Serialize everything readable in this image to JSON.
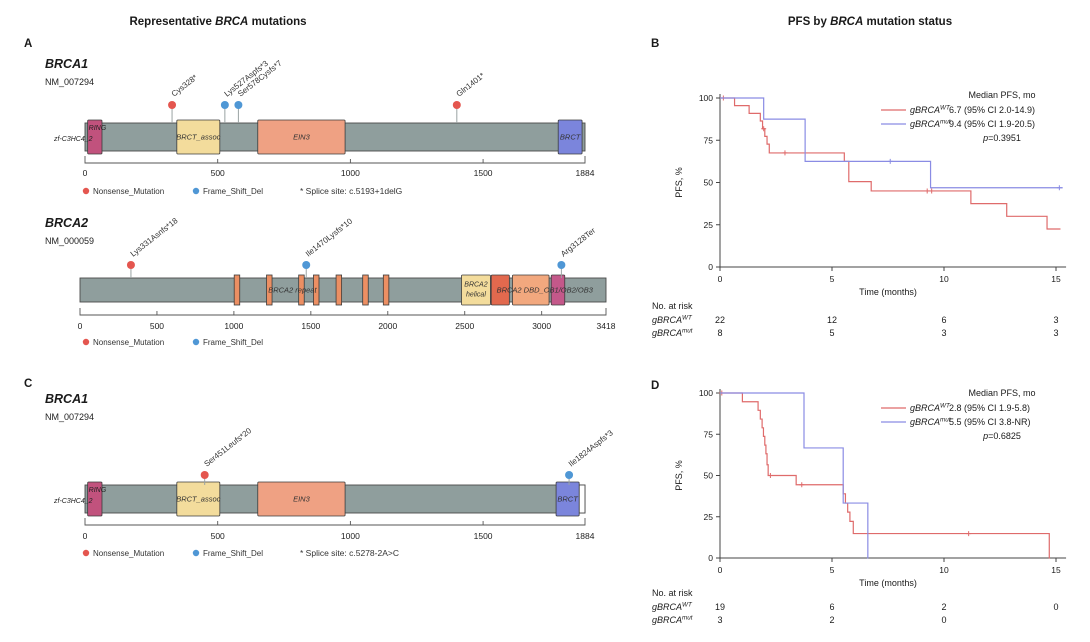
{
  "titles": {
    "left": {
      "prefix": "Representative ",
      "italic": "BRCA",
      "suffix": " mutations"
    },
    "right": {
      "prefix": "PFS by ",
      "italic": "BRCA",
      "suffix": " mutation status"
    }
  },
  "panel_labels": [
    "A",
    "B",
    "C",
    "D"
  ],
  "palette": {
    "nonsense": "#e4564f",
    "frameshift": "#4f97d5",
    "km_wt": "#df6b6b",
    "km_mut": "#8a8ce4",
    "bar": "#8f9e9d",
    "bar_border": "#4a4a4a",
    "domain_border": "#3c3c3c",
    "stem": "#9aa3a3",
    "axis": "#555555",
    "text": "#1a1a1a"
  },
  "chart_data": [
    {
      "type": "lollipop",
      "panel": "A",
      "gene": "BRCA1",
      "transcript": "NM_007294",
      "protein_length": 1884,
      "axis_ticks": [
        0,
        500,
        1000,
        1500,
        1884
      ],
      "domain_side_label": "zf-C3HC4_2",
      "domains": [
        {
          "label": "RING",
          "start": 10,
          "end": 64,
          "color": "#c1527d"
        },
        {
          "label": "BRCT_assoc",
          "start": 346,
          "end": 508,
          "color": "#f3dc9c"
        },
        {
          "label": "EIN3",
          "start": 651,
          "end": 980,
          "color": "#efa183"
        },
        {
          "label": "BRCT",
          "start": 1783,
          "end": 1873,
          "color": "#7b85dc"
        }
      ],
      "mutations": [
        {
          "label": "Cys328*",
          "position": 328,
          "type": "nonsense"
        },
        {
          "label": "Lys527Aspfs*3",
          "position": 527,
          "type": "frameshift"
        },
        {
          "label": "Ser578Cysfs*7",
          "position": 578,
          "type": "frameshift"
        },
        {
          "label": "Gln1401*",
          "position": 1401,
          "type": "nonsense"
        }
      ],
      "legend": [
        {
          "type": "nonsense",
          "label": "Nonsense_Mutation"
        },
        {
          "type": "frameshift",
          "label": "Frame_Shift_Del"
        }
      ],
      "note": "* Splice site: c.5193+1delG"
    },
    {
      "type": "lollipop",
      "panel": "A",
      "gene": "BRCA2",
      "transcript": "NM_000059",
      "protein_length": 3418,
      "axis_ticks": [
        0,
        500,
        1000,
        1500,
        2000,
        2500,
        3000,
        3418
      ],
      "repeats": {
        "label": "BRCA2 repeat",
        "label_at": 1380,
        "positions": [
          1002,
          1212,
          1421,
          1517,
          1664,
          1837,
          1971
        ],
        "width": 36,
        "color": "#ec8f63"
      },
      "domains": [
        {
          "label": "BRCA2",
          "label2": "helical",
          "start": 2479,
          "end": 2667,
          "color": "#f3dc9c"
        },
        {
          "label": "",
          "start": 2672,
          "end": 2790,
          "color": "#e2694e"
        },
        {
          "label": "",
          "start": 2810,
          "end": 3048,
          "color": "#f2a87e"
        },
        {
          "label": "",
          "start": 3062,
          "end": 3150,
          "color": "#c4588a"
        }
      ],
      "span_label": {
        "text": "BRCA2 DBD_OB1/OB2/OB3",
        "center": 3020
      },
      "mutations": [
        {
          "label": "Lys331Asnfs*18",
          "position": 331,
          "type": "nonsense"
        },
        {
          "label": "Ile1470Lysfs*10",
          "position": 1470,
          "type": "frameshift"
        },
        {
          "label": "Arg3128Ter",
          "position": 3128,
          "type": "frameshift"
        }
      ],
      "legend": [
        {
          "type": "nonsense",
          "label": "Nonsense_Mutation"
        },
        {
          "type": "frameshift",
          "label": "Frame_Shift_Del"
        }
      ],
      "note": null
    },
    {
      "type": "km",
      "panel": "B",
      "ylabel": "PFS, %",
      "xlabel": "Time (months)",
      "yticks": [
        0,
        25,
        50,
        75,
        100
      ],
      "xticks": [
        0,
        5,
        10,
        15
      ],
      "legend_title": "Median PFS, mo",
      "pvalue": "0.3951",
      "series": [
        {
          "name": {
            "prefix": "g",
            "gene": "BRCA",
            "sup": "WT"
          },
          "color_key": "km_wt",
          "median": "6.7 (95% CI 2.0-14.9)",
          "steps": [
            [
              0,
              100
            ],
            [
              0.65,
              95.5
            ],
            [
              1.3,
              90.9
            ],
            [
              1.8,
              86.4
            ],
            [
              1.9,
              81.8
            ],
            [
              2.0,
              77.3
            ],
            [
              2.1,
              72.7
            ],
            [
              2.2,
              67.5
            ],
            [
              5.55,
              62.5
            ],
            [
              5.75,
              50.5
            ],
            [
              6.75,
              45.0
            ],
            [
              11.2,
              37.5
            ],
            [
              12.8,
              30.0
            ],
            [
              14.6,
              22.5
            ]
          ],
          "end": 15.2,
          "censors": [
            [
              0.15,
              100
            ],
            [
              1.95,
              81.8
            ],
            [
              2.9,
              67.5
            ],
            [
              9.25,
              45.0
            ],
            [
              9.45,
              45.0
            ]
          ]
        },
        {
          "name": {
            "prefix": "g",
            "gene": "BRCA",
            "sup": "mut"
          },
          "color_key": "km_mut",
          "median": "9.4 (95% CI 1.9-20.5)",
          "steps": [
            [
              0,
              100
            ],
            [
              1.95,
              87.5
            ],
            [
              3.8,
              62.5
            ],
            [
              9.4,
              46.9
            ]
          ],
          "end": 15.3,
          "censors": [
            [
              7.6,
              62.5
            ],
            [
              15.15,
              46.9
            ]
          ]
        }
      ],
      "at_risk": {
        "title": "No. at risk",
        "rows": [
          {
            "name": {
              "prefix": "g",
              "gene": "BRCA",
              "sup": "WT"
            },
            "values": [
              "22",
              "12",
              "6",
              "3"
            ]
          },
          {
            "name": {
              "prefix": "g",
              "gene": "BRCA",
              "sup": "mut"
            },
            "values": [
              "8",
              "5",
              "3",
              "3"
            ]
          }
        ]
      }
    },
    {
      "type": "lollipop",
      "panel": "C",
      "gene": "BRCA1",
      "transcript": "NM_007294",
      "protein_length": 1884,
      "axis_ticks": [
        0,
        500,
        1000,
        1500,
        1884
      ],
      "domain_side_label": "zf-C3HC4_2",
      "white_cap": {
        "start": 1862,
        "end": 1884
      },
      "domains": [
        {
          "label": "RING",
          "start": 10,
          "end": 64,
          "color": "#c1527d"
        },
        {
          "label": "BRCT_assoc",
          "start": 346,
          "end": 508,
          "color": "#f3dc9c"
        },
        {
          "label": "EIN3",
          "start": 651,
          "end": 980,
          "color": "#efa183"
        },
        {
          "label": "BRCT",
          "start": 1775,
          "end": 1862,
          "color": "#7b85dc"
        }
      ],
      "mutations": [
        {
          "label": "Ser451Leufs*20",
          "position": 451,
          "type": "nonsense"
        },
        {
          "label": "Ile1824Aspfs*3",
          "position": 1824,
          "type": "frameshift"
        }
      ],
      "legend": [
        {
          "type": "nonsense",
          "label": "Nonsense_Mutation"
        },
        {
          "type": "frameshift",
          "label": "Frame_Shift_Del"
        }
      ],
      "note": "* Splice site: c.5278-2A>C"
    },
    {
      "type": "km",
      "panel": "D",
      "ylabel": "PFS, %",
      "xlabel": "Time (months)",
      "yticks": [
        0,
        25,
        50,
        75,
        100
      ],
      "xticks": [
        0,
        5,
        10,
        15
      ],
      "legend_title": "Median PFS, mo",
      "pvalue": "0.6825",
      "series": [
        {
          "name": {
            "prefix": "g",
            "gene": "BRCA",
            "sup": "WT"
          },
          "color_key": "km_wt",
          "median": "2.8 (95% CI 1.9-5.8)",
          "steps": [
            [
              0,
              100
            ],
            [
              1.0,
              94.7
            ],
            [
              1.7,
              89.5
            ],
            [
              1.8,
              84.2
            ],
            [
              1.88,
              78.9
            ],
            [
              1.94,
              73.7
            ],
            [
              2.0,
              68.4
            ],
            [
              2.05,
              63.2
            ],
            [
              2.1,
              56.5
            ],
            [
              2.15,
              50.0
            ],
            [
              3.4,
              44.4
            ],
            [
              5.5,
              38.9
            ],
            [
              5.6,
              33.3
            ],
            [
              5.7,
              27.8
            ],
            [
              5.8,
              22.2
            ],
            [
              5.95,
              14.8
            ],
            [
              14.7,
              0
            ]
          ],
          "end": 14.72,
          "censors": [
            [
              0.08,
              100
            ],
            [
              2.25,
              50.0
            ],
            [
              3.65,
              44.4
            ],
            [
              11.1,
              14.8
            ]
          ]
        },
        {
          "name": {
            "prefix": "g",
            "gene": "BRCA",
            "sup": "mut"
          },
          "color_key": "km_mut",
          "median": "5.5 (95% CI 3.8-NR)",
          "steps": [
            [
              0,
              100
            ],
            [
              3.75,
              66.7
            ],
            [
              5.5,
              33.3
            ],
            [
              6.6,
              0
            ]
          ],
          "end": 6.62,
          "censors": []
        }
      ],
      "at_risk": {
        "title": "No. at risk",
        "rows": [
          {
            "name": {
              "prefix": "g",
              "gene": "BRCA",
              "sup": "WT"
            },
            "values": [
              "19",
              "6",
              "2",
              "0"
            ]
          },
          {
            "name": {
              "prefix": "g",
              "gene": "BRCA",
              "sup": "mut"
            },
            "values": [
              "3",
              "2",
              "0"
            ]
          }
        ]
      }
    }
  ]
}
